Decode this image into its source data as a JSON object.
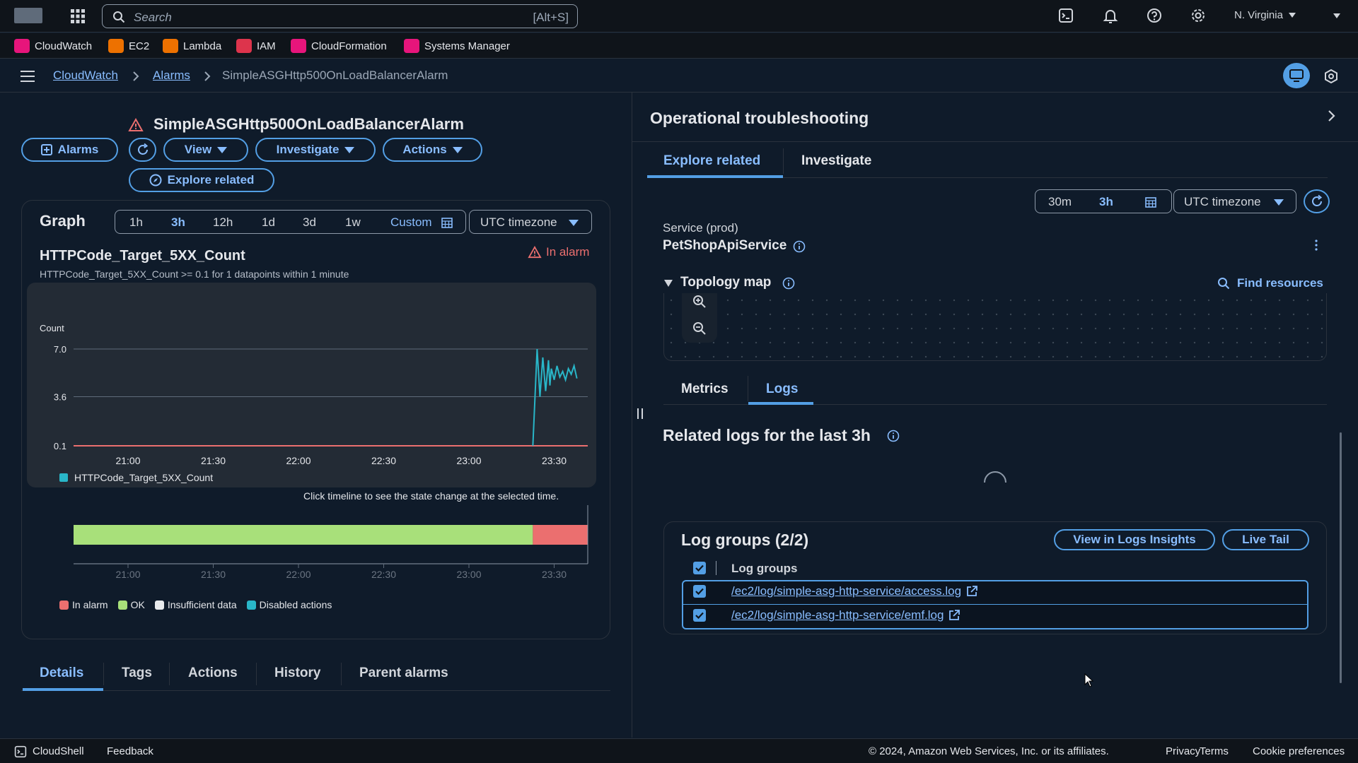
{
  "top_bar": {
    "search_placeholder": "Search",
    "search_shortcut": "[Alt+S]",
    "region": "N. Virginia"
  },
  "favorites": [
    {
      "label": "CloudWatch",
      "color": "#e7157b"
    },
    {
      "label": "EC2",
      "color": "#ed7100"
    },
    {
      "label": "Lambda",
      "color": "#ed7100"
    },
    {
      "label": "IAM",
      "color": "#dd344c"
    },
    {
      "label": "CloudFormation",
      "color": "#e7157b"
    },
    {
      "label": "Systems Manager",
      "color": "#e7157b"
    }
  ],
  "breadcrumb": [
    "CloudWatch",
    "Alarms",
    "SimpleASGHttp500OnLoadBalancerAlarm"
  ],
  "alarm": {
    "name": "SimpleASGHttp500OnLoadBalancerAlarm",
    "buttons": {
      "alarms": "Alarms",
      "view": "View",
      "investigate": "Investigate",
      "actions": "Actions",
      "explore_related": "Explore related"
    }
  },
  "graph": {
    "title": "Graph",
    "ranges": [
      "1h",
      "3h",
      "12h",
      "1d",
      "3d",
      "1w",
      "Custom"
    ],
    "active_range": "3h",
    "timezone": "UTC timezone",
    "metric_title": "HTTPCode_Target_5XX_Count",
    "metric_subtitle": "HTTPCode_Target_5XX_Count >= 0.1 for 1 datapoints within 1 minute",
    "state": "In alarm",
    "timeline_hint": "Click timeline to see the state change at the selected time.",
    "legend_states": [
      "In alarm",
      "OK",
      "Insufficient data",
      "Disabled actions"
    ],
    "state_colors": {
      "in_alarm": "#eb6f6f",
      "ok": "#a8e07a",
      "insufficient": "#e9ebed",
      "disabled": "#29b6c8"
    }
  },
  "chart_data": {
    "type": "line",
    "ylabel": "Count",
    "yticks": [
      "7.0",
      "3.6",
      "0.1"
    ],
    "ylim": [
      0.1,
      7.0
    ],
    "x_ticks": [
      "21:00",
      "21:30",
      "22:00",
      "22:30",
      "23:00",
      "23:30"
    ],
    "threshold": 0.1,
    "series": [
      {
        "name": "HTTPCode_Target_5XX_Count",
        "color": "#29b6c8",
        "x": [
          -7.5,
          -6,
          -5,
          -4,
          -3,
          -2,
          -1.5,
          -1,
          0,
          1,
          2,
          3,
          4,
          5,
          6,
          7,
          8
        ],
        "values": [
          0.1,
          7.0,
          3.6,
          6.4,
          4.0,
          6.2,
          4.4,
          5.6,
          4.8,
          5.8,
          5.0,
          5.4,
          4.8,
          5.6,
          5.2,
          5.8,
          4.9
        ]
      }
    ],
    "x_minutes_relative_to": "23:30"
  },
  "bottom_tabs": [
    "Details",
    "Tags",
    "Actions",
    "History",
    "Parent alarms"
  ],
  "troubleshooting": {
    "title": "Operational troubleshooting",
    "tabs": [
      "Explore related",
      "Investigate"
    ],
    "time_ranges": [
      "30m",
      "3h"
    ],
    "timezone": "UTC timezone",
    "service_label": "Service (prod)",
    "service_name": "PetShopApiService",
    "topology_title": "Topology map",
    "find_resources": "Find resources",
    "sub_tabs": [
      "Metrics",
      "Logs"
    ],
    "related_logs_title": "Related logs for the last 3h",
    "log_groups_title": "Log groups (2/2)",
    "view_in_insights": "View in Logs Insights",
    "live_tail": "Live Tail",
    "log_groups_header": "Log groups",
    "log_groups": [
      "/ec2/log/simple-asg-http-service/access.log",
      "/ec2/log/simple-asg-http-service/emf.log"
    ]
  },
  "footer": {
    "cloudshell": "CloudShell",
    "feedback": "Feedback",
    "copyright": "© 2024, Amazon Web Services, Inc. or its affiliates.",
    "privacy": "Privacy",
    "terms": "Terms",
    "cookies": "Cookie preferences"
  }
}
